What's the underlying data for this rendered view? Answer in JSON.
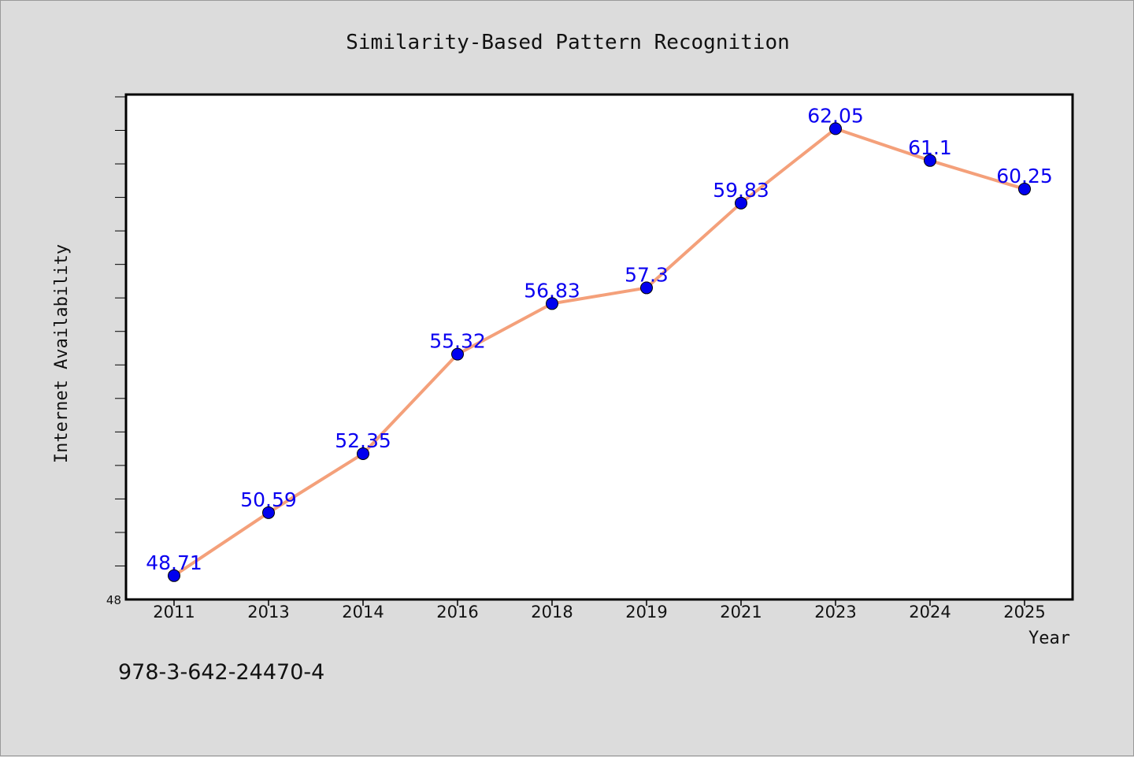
{
  "isbn": "978-3-642-24470-4",
  "chart_data": {
    "type": "line",
    "title": "Similarity-Based Pattern Recognition",
    "xlabel": "Year",
    "ylabel": "Internet Availability",
    "categories": [
      "2011",
      "2013",
      "2014",
      "2016",
      "2018",
      "2019",
      "2021",
      "2023",
      "2024",
      "2025"
    ],
    "series": [
      {
        "values": [
          48.71,
          50.59,
          52.35,
          55.32,
          56.83,
          57.3,
          59.83,
          62.05,
          61.1,
          60.25
        ],
        "labels": [
          "48.71",
          "50.59",
          "52.35",
          "55.32",
          "56.83",
          "57.3",
          "59.83",
          "62.05",
          "61.1",
          "60.25"
        ],
        "line_color": "#f4a07a",
        "marker_color": "#0000ee"
      }
    ],
    "ylim": [
      48,
      63.07
    ],
    "y_tick_labels": [
      "48"
    ],
    "label_color": "#0a00f0",
    "grid": false,
    "legend": "none"
  }
}
